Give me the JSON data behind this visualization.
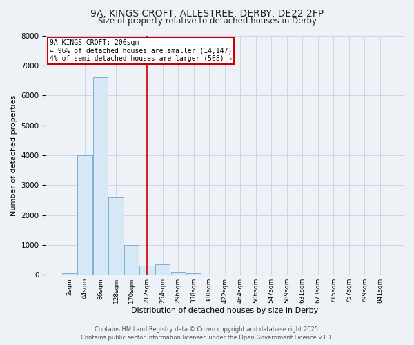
{
  "title_line1": "9A, KINGS CROFT, ALLESTREE, DERBY, DE22 2FP",
  "title_line2": "Size of property relative to detached houses in Derby",
  "xlabel": "Distribution of detached houses by size in Derby",
  "ylabel": "Number of detached properties",
  "categories": [
    "2sqm",
    "44sqm",
    "86sqm",
    "128sqm",
    "170sqm",
    "212sqm",
    "254sqm",
    "296sqm",
    "338sqm",
    "380sqm",
    "422sqm",
    "464sqm",
    "506sqm",
    "547sqm",
    "589sqm",
    "631sqm",
    "673sqm",
    "715sqm",
    "757sqm",
    "799sqm",
    "841sqm"
  ],
  "values": [
    50,
    4000,
    6600,
    2600,
    1000,
    300,
    350,
    100,
    60,
    0,
    0,
    0,
    0,
    0,
    0,
    0,
    0,
    0,
    0,
    0,
    0
  ],
  "bar_color": "#d6e8f5",
  "bar_edge_color": "#7ab0d4",
  "red_line_x": 5,
  "annotation_line1": "9A KINGS CROFT: 206sqm",
  "annotation_line2": "← 96% of detached houses are smaller (14,147)",
  "annotation_line3": "4% of semi-detached houses are larger (568) →",
  "annotation_box_facecolor": "#ffffff",
  "annotation_box_edgecolor": "#cc0000",
  "red_line_color": "#cc0000",
  "grid_color": "#c5d8e8",
  "background_color": "#eef2f7",
  "footer_line1": "Contains HM Land Registry data © Crown copyright and database right 2025.",
  "footer_line2": "Contains public sector information licensed under the Open Government Licence v3.0.",
  "ylim": [
    0,
    8000
  ],
  "yticks": [
    0,
    1000,
    2000,
    3000,
    4000,
    5000,
    6000,
    7000,
    8000
  ],
  "title_fontsize": 10,
  "subtitle_fontsize": 8.5,
  "xlabel_fontsize": 8,
  "ylabel_fontsize": 8,
  "xtick_fontsize": 6.5,
  "ytick_fontsize": 7.5,
  "annotation_fontsize": 7,
  "footer_fontsize": 6
}
